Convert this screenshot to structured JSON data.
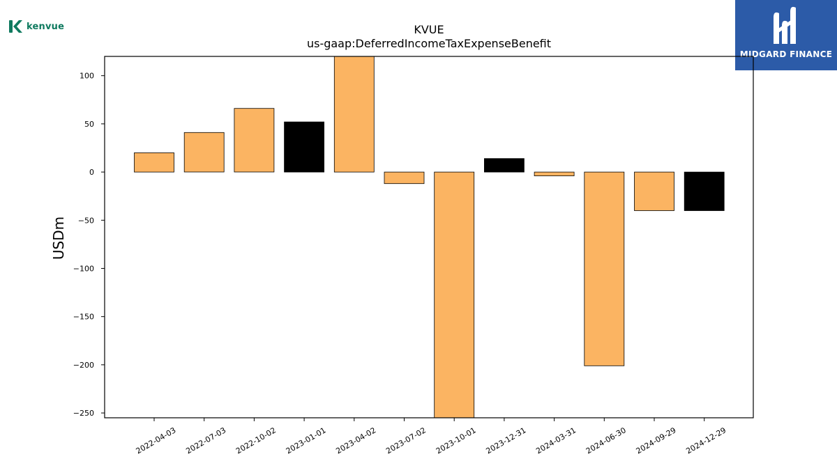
{
  "branding": {
    "left_logo_text": "kenvue",
    "left_logo_icon": "kenvue-k-icon",
    "right_logo_text": "MIDGARD FINANCE",
    "right_logo_icon": "midgard-m-icon",
    "right_logo_bg": "#2c5ba8",
    "left_logo_color": "#0f7a5f"
  },
  "chart_data": {
    "type": "bar",
    "title": "KVUE",
    "subtitle": "us-gaap:DeferredIncomeTaxExpenseBenefit",
    "xlabel": "",
    "ylabel": "USDm",
    "categories": [
      "2022-04-03",
      "2022-07-03",
      "2022-10-02",
      "2023-01-01",
      "2023-04-02",
      "2023-07-02",
      "2023-10-01",
      "2023-12-31",
      "2024-03-31",
      "2024-06-30",
      "2024-09-29",
      "2024-12-29"
    ],
    "values": [
      20,
      41,
      66,
      52,
      120,
      -12,
      -255,
      14,
      -4,
      -201,
      -40,
      -40
    ],
    "bar_colors": [
      "#fbb462",
      "#fbb462",
      "#fbb462",
      "#000000",
      "#fbb462",
      "#fbb462",
      "#fbb462",
      "#000000",
      "#fbb462",
      "#fbb462",
      "#fbb462",
      "#000000"
    ],
    "ylim": [
      -255,
      120
    ],
    "yticks": [
      100,
      50,
      0,
      -50,
      -100,
      -150,
      -200,
      -250
    ],
    "ytick_labels": [
      "100",
      "50",
      "0",
      "−50",
      "−100",
      "−150",
      "−200",
      "−250"
    ],
    "grid": false,
    "legend": "none"
  }
}
